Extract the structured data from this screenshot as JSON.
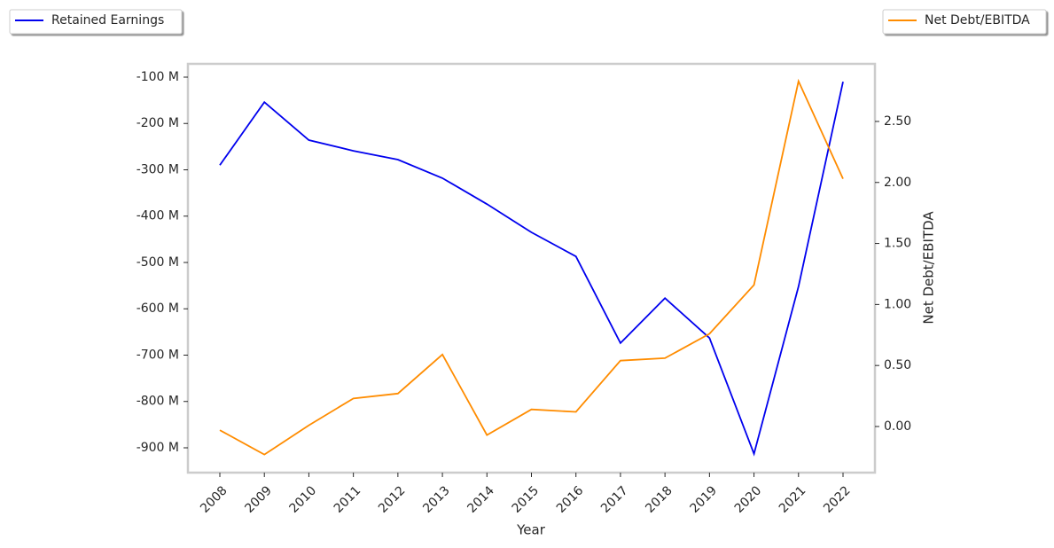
{
  "chart_data": {
    "type": "line",
    "x_label": "Year",
    "y2_label": "Net Debt/EBITDA",
    "categories": [
      "2008",
      "2009",
      "2010",
      "2011",
      "2012",
      "2013",
      "2014",
      "2015",
      "2016",
      "2017",
      "2018",
      "2019",
      "2020",
      "2021",
      "2022"
    ],
    "series": [
      {
        "name": "Retained Earnings",
        "color": "#0000ee",
        "axis": "y",
        "values": [
          -290,
          -154,
          -236,
          -259,
          -278,
          -318,
          -374,
          -435,
          -487,
          -674,
          -577,
          -663,
          -913,
          -552,
          -110
        ]
      },
      {
        "name": "Net Debt/EBITDA",
        "color": "#ff8c00",
        "axis": "y2",
        "values": [
          -0.03,
          -0.23,
          0.01,
          0.23,
          0.27,
          0.59,
          -0.07,
          0.14,
          0.12,
          0.54,
          0.56,
          0.76,
          1.16,
          2.83,
          2.03
        ]
      }
    ],
    "ylim": [
      -953.6,
      -71.3
    ],
    "yticks": [
      {
        "value": -100,
        "label": "-100 M"
      },
      {
        "value": -200,
        "label": "-200 M"
      },
      {
        "value": -300,
        "label": "-300 M"
      },
      {
        "value": -400,
        "label": "-400 M"
      },
      {
        "value": -500,
        "label": "-500 M"
      },
      {
        "value": -600,
        "label": "-600 M"
      },
      {
        "value": -700,
        "label": "-700 M"
      },
      {
        "value": -800,
        "label": "-800 M"
      },
      {
        "value": -900,
        "label": "-900 M"
      }
    ],
    "y2lim": [
      -0.378,
      2.972
    ],
    "y2ticks": [
      {
        "value": 0,
        "label": "0.00"
      },
      {
        "value": 0.5,
        "label": "0.50"
      },
      {
        "value": 1,
        "label": "1.00"
      },
      {
        "value": 1.5,
        "label": "1.50"
      },
      {
        "value": 2,
        "label": "2.00"
      },
      {
        "value": 2.5,
        "label": "2.50"
      }
    ],
    "grid": false
  }
}
